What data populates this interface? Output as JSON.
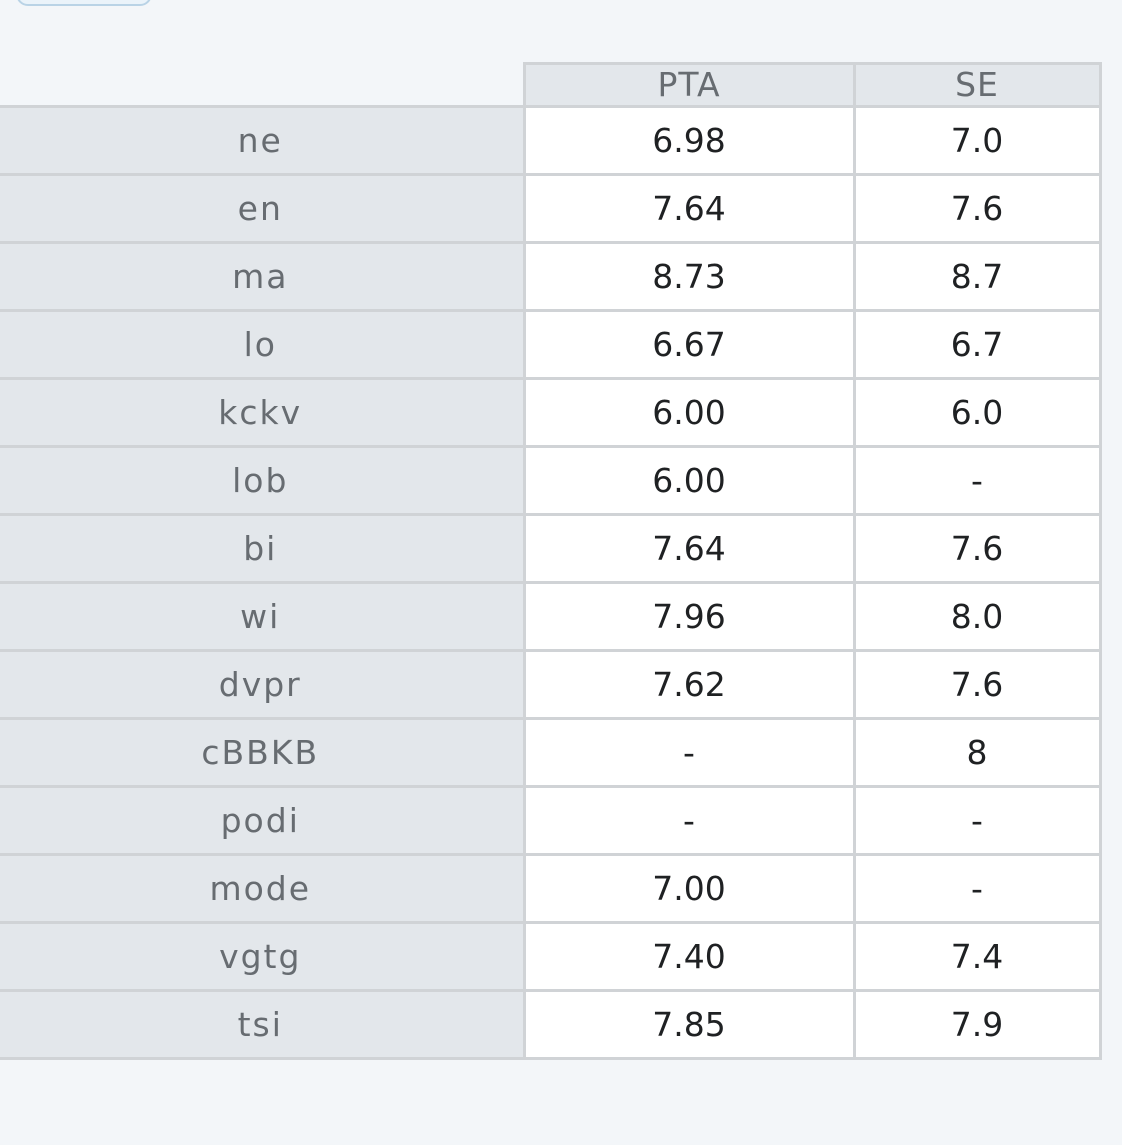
{
  "table": {
    "columns": [
      "PTA",
      "SE"
    ],
    "rows": [
      {
        "label": "ne",
        "pta": "6.98",
        "se": "7.0"
      },
      {
        "label": "en",
        "pta": "7.64",
        "se": "7.6"
      },
      {
        "label": "ma",
        "pta": "8.73",
        "se": "8.7"
      },
      {
        "label": "lo",
        "pta": "6.67",
        "se": "6.7"
      },
      {
        "label": "kckv",
        "pta": "6.00",
        "se": "6.0"
      },
      {
        "label": "lob",
        "pta": "6.00",
        "se": "-"
      },
      {
        "label": "bi",
        "pta": "7.64",
        "se": "7.6"
      },
      {
        "label": "wi",
        "pta": "7.96",
        "se": "8.0"
      },
      {
        "label": "dvpr",
        "pta": "7.62",
        "se": "7.6"
      },
      {
        "label": "cBBKB",
        "pta": "-",
        "se": "8"
      },
      {
        "label": "podi",
        "pta": "-",
        "se": "-"
      },
      {
        "label": "mode",
        "pta": "7.00",
        "se": "-"
      },
      {
        "label": "vgtg",
        "pta": "7.40",
        "se": "7.4"
      },
      {
        "label": "tsi",
        "pta": "7.85",
        "se": "7.9"
      }
    ]
  }
}
